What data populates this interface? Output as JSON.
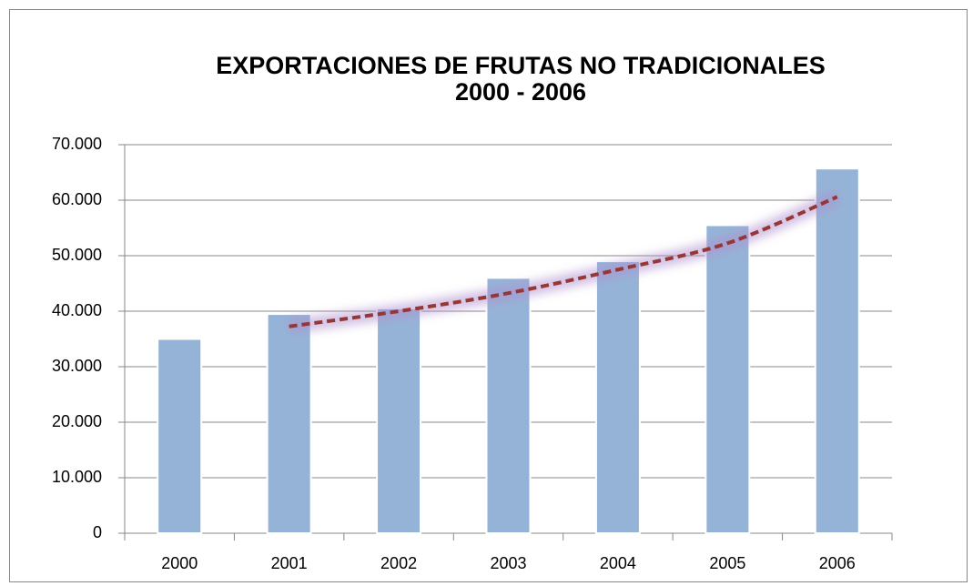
{
  "chart_data": {
    "type": "bar",
    "title": [
      "EXPORTACIONES DE FRUTAS NO TRADICIONALES",
      "2000 - 2006"
    ],
    "categories": [
      "2000",
      "2001",
      "2002",
      "2003",
      "2004",
      "2005",
      "2006"
    ],
    "values": [
      35000,
      39500,
      40500,
      46000,
      49000,
      55500,
      65700
    ],
    "color": "#95b3d7",
    "trendline": {
      "values": [
        null,
        37250,
        40000,
        43250,
        47500,
        52250,
        60600
      ],
      "color": "#953735",
      "style": "dashed"
    },
    "ylim": [
      0,
      70000
    ],
    "yticks": [
      0,
      {
        "value": 10000,
        "label": "10.000"
      },
      {
        "value": 20000,
        "label": "20.000"
      },
      {
        "value": 30000,
        "label": "30.000"
      },
      {
        "value": 40000,
        "label": "40.000"
      },
      {
        "value": 50000,
        "label": "50.000"
      },
      {
        "value": 60000,
        "label": "60.000"
      },
      {
        "value": 70000,
        "label": "70.000"
      }
    ],
    "grid": true
  }
}
